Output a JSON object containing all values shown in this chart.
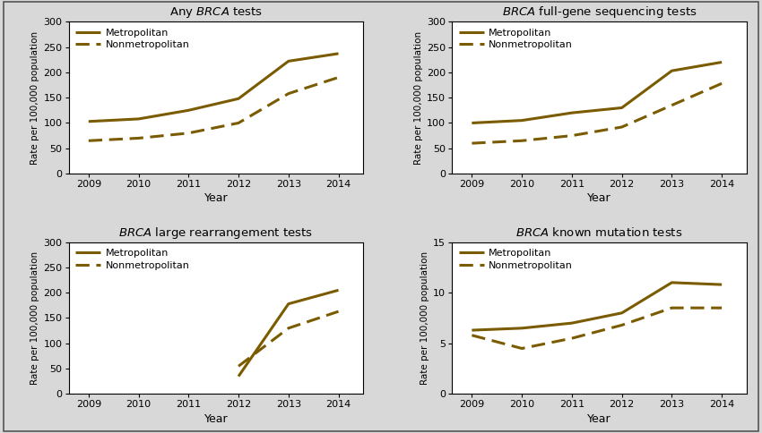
{
  "years": [
    2009,
    2010,
    2011,
    2012,
    2013,
    2014
  ],
  "panels": [
    {
      "title_pre": "Any ",
      "title_italic": "BRCA",
      "title_post": " tests",
      "metro": [
        103,
        108,
        125,
        148,
        222,
        237
      ],
      "nonmetro": [
        65,
        70,
        80,
        100,
        158,
        190
      ],
      "ylim": [
        0,
        300
      ],
      "yticks": [
        0,
        50,
        100,
        150,
        200,
        250,
        300
      ]
    },
    {
      "title_pre": "",
      "title_italic": "BRCA",
      "title_post": " full-gene sequencing tests",
      "metro": [
        100,
        105,
        120,
        130,
        203,
        220
      ],
      "nonmetro": [
        60,
        65,
        75,
        92,
        135,
        178
      ],
      "ylim": [
        0,
        300
      ],
      "yticks": [
        0,
        50,
        100,
        150,
        200,
        250,
        300
      ]
    },
    {
      "title_pre": "",
      "title_italic": "BRCA",
      "title_post": " large rearrangement tests",
      "metro": [
        null,
        null,
        null,
        35,
        178,
        205
      ],
      "nonmetro": [
        null,
        null,
        null,
        55,
        130,
        163
      ],
      "ylim": [
        0,
        300
      ],
      "yticks": [
        0,
        50,
        100,
        150,
        200,
        250,
        300
      ]
    },
    {
      "title_pre": "",
      "title_italic": "BRCA",
      "title_post": " known mutation tests",
      "metro": [
        6.3,
        6.5,
        7.0,
        8.0,
        11.0,
        10.8
      ],
      "nonmetro": [
        5.8,
        4.5,
        5.5,
        6.8,
        8.5,
        8.5
      ],
      "ylim": [
        0,
        15
      ],
      "yticks": [
        0,
        5,
        10,
        15
      ]
    }
  ],
  "line_color": "#7B5B00",
  "metro_label": "Metropolitan",
  "nonmetro_label": "Nonmetropolitan",
  "ylabel": "Rate per 100,000 population",
  "xlabel": "Year",
  "plot_bg": "#ffffff",
  "outer_bg": "#d8d8d8",
  "border_color": "#888888"
}
